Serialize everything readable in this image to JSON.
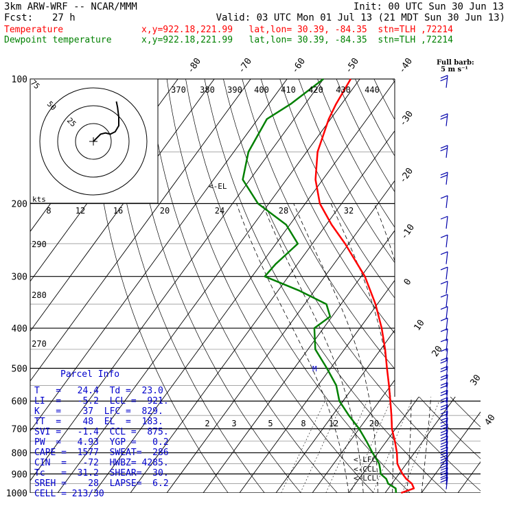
{
  "header": {
    "model": "3km ARW-WRF -- NCAR/MMM",
    "init": "Init: 00 UTC Sun 30 Jun 13",
    "fcst_label": "Fcst:",
    "fcst_value": "27 h",
    "valid": "Valid: 03 UTC Mon 01 Jul 13 (21 MDT Sun 30 Jun 13)",
    "temp_label": "Temperature",
    "dew_label": "Dewpoint temperature",
    "temp_loc": "x,y=922.18,221.99   lat,lon= 30.39, -84.35  stn=TLH ,72214",
    "dew_loc": "x,y=922.18,221.99   lat,lon= 30.39, -84.35  stn=TLH ,72214"
  },
  "barb_legend": {
    "line1": "Full barb:",
    "line2": "5 m s⁻¹"
  },
  "colors": {
    "temperature": "#ff0000",
    "dewpoint": "#008000",
    "text_blue": "#0000cc"
  },
  "parcel_info": {
    "title": "Parcel Info",
    "rows": [
      "T   =   24.4  Td =  23.0",
      "LI  =   -5.2  LCL =  921.",
      "K   =    37  LFC =  829.",
      "TT  =    48  EL  =  183.",
      "SVI =   -1.4  CCL =  875.",
      "PW  =   4.93  YGP =   0.2",
      "CAPE =  1577  SWEAT=  286",
      "CIN  =   -72  HWBZ= 4285.",
      "Tc   =  31.2  SHEAR=  30.",
      "SREH =    28  LAPSE=  6.2",
      "CELL = 213/30"
    ]
  },
  "chart_data": {
    "type": "line",
    "title": "",
    "xlabel": "",
    "ylabel": "",
    "y_scale": "log pressure",
    "pressure_ticks": [
      "100",
      "200",
      "300",
      "400",
      "500",
      "600",
      "700",
      "800",
      "900",
      "1000"
    ],
    "isotherm_labels": [
      "-80",
      "-70",
      "-60",
      "-50",
      "-40",
      "-30",
      "-20",
      "-10",
      "0",
      "10",
      "20",
      "30",
      "40"
    ],
    "theta_labels": [
      "370",
      "380",
      "390",
      "400",
      "410",
      "420",
      "430",
      "440"
    ],
    "theta_low_labels": [
      "290",
      "280",
      "270"
    ],
    "mixing_ratio_labels": [
      "2",
      "3",
      "5",
      "8",
      "12",
      "20"
    ],
    "hodograph_ring_labels": [
      "75",
      "50",
      "25"
    ],
    "hodograph_units": "kts",
    "inset_x_labels": [
      "8",
      "12",
      "16",
      "20",
      "24",
      "28",
      "32"
    ],
    "markers": [
      "<-EL",
      "<-LFC",
      "<-CCL",
      "<-LCL",
      "M"
    ],
    "series": [
      {
        "name": "Temperature",
        "pressure": [
          1000,
          975,
          950,
          925,
          900,
          875,
          850,
          800,
          750,
          700,
          650,
          600,
          550,
          500,
          450,
          400,
          350,
          300,
          250,
          225,
          200,
          175,
          150,
          125,
          115,
          100
        ],
        "temperature": [
          24.4,
          27.0,
          25.5,
          23.0,
          21.0,
          19.2,
          17.5,
          15.2,
          12.3,
          9.0,
          6.2,
          3.0,
          -0.5,
          -4.5,
          -8.8,
          -14.0,
          -20.5,
          -29.0,
          -41.0,
          -48.5,
          -56.0,
          -62.0,
          -67.0,
          -70.5,
          -71.5,
          -72.5
        ]
      },
      {
        "name": "Dewpoint temperature",
        "pressure": [
          1000,
          975,
          950,
          925,
          900,
          875,
          850,
          800,
          750,
          700,
          650,
          600,
          550,
          500,
          450,
          400,
          375,
          350,
          325,
          300,
          280,
          250,
          225,
          200,
          175,
          150,
          125,
          115,
          100
        ],
        "temperature": [
          23.0,
          22.0,
          19.0,
          17.5,
          15.0,
          13.8,
          12.5,
          8.5,
          4.5,
          0.0,
          -5.5,
          -11.0,
          -15.0,
          -21.0,
          -28.0,
          -32.5,
          -30.5,
          -34.0,
          -44.0,
          -56.5,
          -56.0,
          -54.0,
          -61.0,
          -73.0,
          -82.0,
          -86.0,
          -87.5,
          -84.0,
          -80.0
        ]
      }
    ],
    "hodograph": {
      "u": [
        0,
        1,
        3,
        6,
        10,
        14,
        18,
        21,
        21,
        20,
        19
      ],
      "v": [
        0,
        1,
        3,
        6,
        7,
        6,
        8,
        13,
        20,
        28,
        33
      ]
    }
  }
}
